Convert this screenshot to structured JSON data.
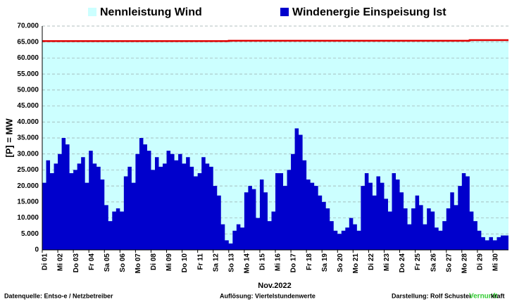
{
  "chart_data": {
    "type": "area",
    "legend_position": "top",
    "ylabel": "[P] = MW",
    "xlabel": "Nov.2022",
    "footer": {
      "source": "Datenquelle: Entso-e  / Netzbetreiber",
      "resolution": "Auflösung: Viertelstundenwerte",
      "author": "Darstellung:  Rolf Schuster",
      "brand_a": "Vernunft",
      "brand_b": "kraft"
    },
    "x": [
      "Di 01",
      null,
      null,
      null,
      "Mi 02",
      null,
      null,
      null,
      "Do 03",
      null,
      null,
      null,
      "Fr 04",
      null,
      null,
      null,
      "Sa 05",
      null,
      null,
      null,
      "So 06",
      null,
      null,
      null,
      "Mo 07",
      null,
      null,
      null,
      "Di 08",
      null,
      null,
      null,
      "Mi 09",
      null,
      null,
      null,
      "Do 10",
      null,
      null,
      null,
      "Fr 11",
      null,
      null,
      null,
      "Sa 12",
      null,
      null,
      null,
      "So 13",
      null,
      null,
      null,
      "Mo 14",
      null,
      null,
      null,
      "Di 15",
      null,
      null,
      null,
      "Mi 16",
      null,
      null,
      null,
      "Do 17",
      null,
      null,
      null,
      "Fr 18",
      null,
      null,
      null,
      "Sa 19",
      null,
      null,
      null,
      "So 20",
      null,
      null,
      null,
      "Mo 21",
      null,
      null,
      null,
      "Di 22",
      null,
      null,
      null,
      "Mi 23",
      null,
      null,
      null,
      "Do 24",
      null,
      null,
      null,
      "Fr 25",
      null,
      null,
      null,
      "Sa 26",
      null,
      null,
      null,
      "So 27",
      null,
      null,
      null,
      "Mo 28",
      null,
      null,
      null,
      "Di 29",
      null,
      null,
      null,
      "Mi 30",
      null,
      null,
      null
    ],
    "series": [
      {
        "name": "Nennleistung Wind",
        "color": "#ccffff",
        "line_color": "#e00000",
        "values": [
          65300,
          65300,
          65300,
          65300,
          65300,
          65300,
          65300,
          65300,
          65300,
          65300,
          65300,
          65300,
          65300,
          65300,
          65300,
          65300,
          65300,
          65300,
          65300,
          65300,
          65300,
          65300,
          65300,
          65300,
          65300,
          65300,
          65300,
          65300,
          65300,
          65300,
          65300,
          65300,
          65300,
          65300,
          65300,
          65300,
          65300,
          65300,
          65300,
          65300,
          65300,
          65300,
          65300,
          65300,
          65300,
          65300,
          65300,
          65300,
          65400,
          65400,
          65400,
          65400,
          65400,
          65400,
          65400,
          65400,
          65400,
          65400,
          65400,
          65400,
          65400,
          65400,
          65400,
          65400,
          65400,
          65400,
          65400,
          65400,
          65400,
          65400,
          65400,
          65400,
          65400,
          65400,
          65400,
          65400,
          65400,
          65400,
          65400,
          65400,
          65400,
          65400,
          65400,
          65400,
          65400,
          65400,
          65400,
          65400,
          65400,
          65400,
          65400,
          65400,
          65400,
          65400,
          65400,
          65400,
          65400,
          65400,
          65400,
          65400,
          65400,
          65400,
          65400,
          65400,
          65400,
          65400,
          65400,
          65400,
          65400,
          65400,
          65600,
          65600,
          65600,
          65600,
          65600,
          65600,
          65600,
          65600,
          65600,
          65600
        ]
      },
      {
        "name": "Windenergie Einspeisung Ist",
        "color": "#0000cc",
        "values": [
          21000,
          28000,
          24000,
          27000,
          30000,
          35000,
          33000,
          24000,
          25000,
          27000,
          29000,
          21000,
          31000,
          27000,
          26000,
          22000,
          14000,
          9000,
          12000,
          13000,
          12000,
          23000,
          26000,
          21000,
          30000,
          35000,
          33000,
          31000,
          25000,
          29000,
          26000,
          27000,
          31000,
          30000,
          28000,
          30000,
          27000,
          29000,
          26000,
          23000,
          24000,
          29000,
          27000,
          26000,
          20000,
          17000,
          8000,
          3000,
          2000,
          6000,
          8000,
          7000,
          18000,
          20000,
          19000,
          10000,
          22000,
          18000,
          9000,
          12000,
          24000,
          24000,
          20000,
          25000,
          30000,
          38000,
          36000,
          28000,
          22000,
          21000,
          20000,
          17000,
          15000,
          13000,
          9000,
          6000,
          5000,
          6000,
          7000,
          10000,
          8000,
          6000,
          20000,
          24000,
          21000,
          17000,
          23000,
          21000,
          16000,
          12000,
          24000,
          22000,
          18000,
          13000,
          8000,
          13000,
          17000,
          14000,
          8000,
          13000,
          12000,
          7000,
          6000,
          9000,
          13000,
          18000,
          14000,
          20000,
          24000,
          23000,
          12000,
          9000,
          6000,
          4000,
          3000,
          4000,
          3000,
          4000,
          4500,
          4500
        ]
      }
    ],
    "ylim": [
      0,
      70000
    ],
    "yticks": [
      0,
      {
        "value": 5000,
        "label": "5.000"
      },
      {
        "value": 10000,
        "label": "10.000"
      },
      {
        "value": 15000,
        "label": "15.000"
      },
      {
        "value": 20000,
        "label": "20.000"
      },
      {
        "value": 25000,
        "label": "25.000"
      },
      {
        "value": 30000,
        "label": "30.000"
      },
      {
        "value": 35000,
        "label": "35.000"
      },
      {
        "value": 40000,
        "label": "40.000"
      },
      {
        "value": 45000,
        "label": "45.000"
      },
      {
        "value": 50000,
        "label": "50.000"
      },
      {
        "value": 55000,
        "label": "55.000"
      },
      {
        "value": 60000,
        "label": "60.000"
      },
      {
        "value": 65000,
        "label": "65.000"
      },
      {
        "value": 70000,
        "label": "70.000"
      }
    ],
    "grid": true
  }
}
